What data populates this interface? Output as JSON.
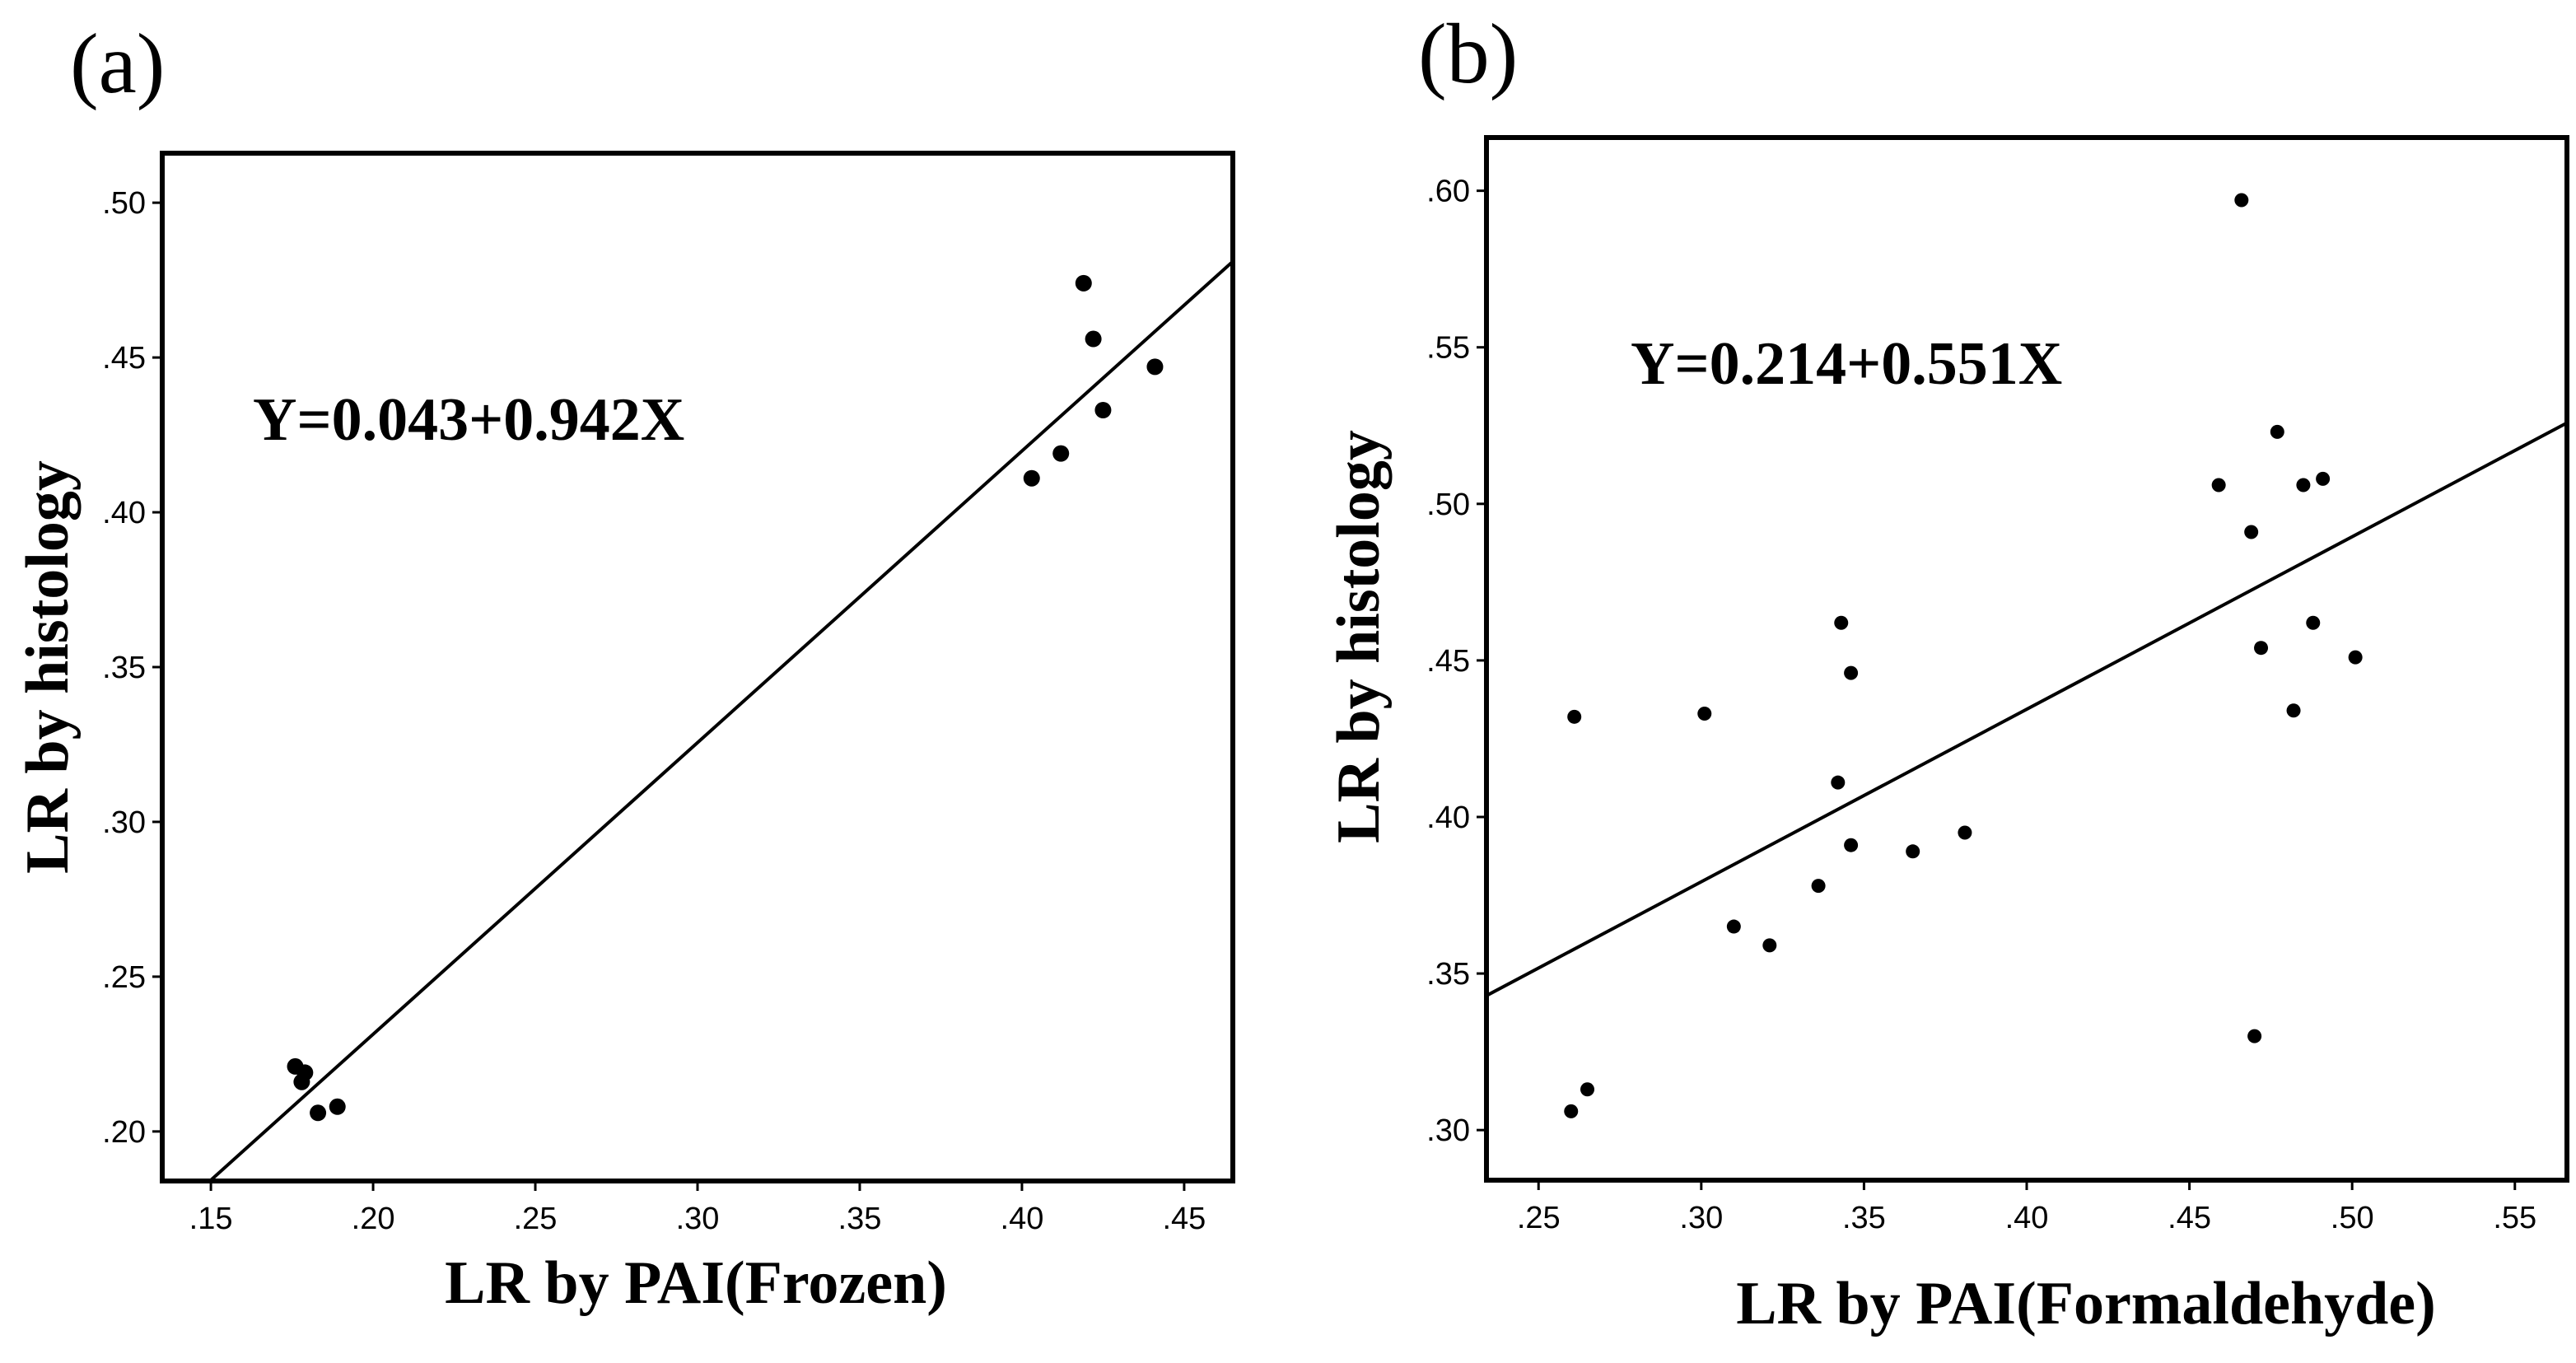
{
  "chart_data": [
    {
      "panel": "(a)",
      "type": "scatter",
      "xlabel": "LR by PAI(Frozen)",
      "ylabel": "LR by histology",
      "annotation": "Y=0.043+0.942X",
      "xlim": [
        0.135,
        0.465
      ],
      "ylim": [
        0.184,
        0.516
      ],
      "xticks": [
        0.15,
        0.2,
        0.25,
        0.3,
        0.35,
        0.4,
        0.45
      ],
      "xtick_labels": [
        ".15",
        ".20",
        ".25",
        ".30",
        ".35",
        ".40",
        ".45"
      ],
      "yticks": [
        0.2,
        0.25,
        0.3,
        0.35,
        0.4,
        0.45,
        0.5
      ],
      "ytick_labels": [
        ".20",
        ".25",
        ".30",
        ".35",
        ".40",
        ".45",
        ".50"
      ],
      "grid": false,
      "fit_line": {
        "intercept": 0.043,
        "slope": 0.942
      },
      "points": [
        {
          "x": 0.176,
          "y": 0.221
        },
        {
          "x": 0.179,
          "y": 0.219
        },
        {
          "x": 0.178,
          "y": 0.216
        },
        {
          "x": 0.183,
          "y": 0.206
        },
        {
          "x": 0.189,
          "y": 0.208
        },
        {
          "x": 0.403,
          "y": 0.411
        },
        {
          "x": 0.412,
          "y": 0.419
        },
        {
          "x": 0.419,
          "y": 0.474
        },
        {
          "x": 0.422,
          "y": 0.456
        },
        {
          "x": 0.425,
          "y": 0.433
        },
        {
          "x": 0.441,
          "y": 0.447
        }
      ]
    },
    {
      "panel": "(b)",
      "type": "scatter",
      "xlabel": "LR by PAI(Formaldehyde)",
      "ylabel": "LR by histology",
      "annotation": "Y=0.214+0.551X",
      "xlim": [
        0.234,
        0.566
      ],
      "ylim": [
        0.284,
        0.617
      ],
      "xticks": [
        0.25,
        0.3,
        0.35,
        0.4,
        0.45,
        0.5,
        0.55
      ],
      "xtick_labels": [
        ".25",
        ".30",
        ".35",
        ".40",
        ".45",
        ".50",
        ".55"
      ],
      "yticks": [
        0.3,
        0.35,
        0.4,
        0.45,
        0.5,
        0.55,
        0.6
      ],
      "ytick_labels": [
        ".30",
        ".35",
        ".40",
        ".45",
        ".50",
        ".55",
        ".60"
      ],
      "grid": false,
      "fit_line": {
        "intercept": 0.214,
        "slope": 0.551
      },
      "points": [
        {
          "x": 0.26,
          "y": 0.306
        },
        {
          "x": 0.265,
          "y": 0.313
        },
        {
          "x": 0.261,
          "y": 0.432
        },
        {
          "x": 0.301,
          "y": 0.433
        },
        {
          "x": 0.31,
          "y": 0.365
        },
        {
          "x": 0.321,
          "y": 0.359
        },
        {
          "x": 0.336,
          "y": 0.378
        },
        {
          "x": 0.342,
          "y": 0.411
        },
        {
          "x": 0.343,
          "y": 0.462
        },
        {
          "x": 0.346,
          "y": 0.446
        },
        {
          "x": 0.346,
          "y": 0.391
        },
        {
          "x": 0.365,
          "y": 0.389
        },
        {
          "x": 0.381,
          "y": 0.395
        },
        {
          "x": 0.459,
          "y": 0.506
        },
        {
          "x": 0.466,
          "y": 0.597
        },
        {
          "x": 0.469,
          "y": 0.491
        },
        {
          "x": 0.47,
          "y": 0.33
        },
        {
          "x": 0.472,
          "y": 0.454
        },
        {
          "x": 0.477,
          "y": 0.523
        },
        {
          "x": 0.482,
          "y": 0.434
        },
        {
          "x": 0.485,
          "y": 0.506
        },
        {
          "x": 0.488,
          "y": 0.462
        },
        {
          "x": 0.491,
          "y": 0.508
        },
        {
          "x": 0.501,
          "y": 0.451
        }
      ]
    }
  ]
}
